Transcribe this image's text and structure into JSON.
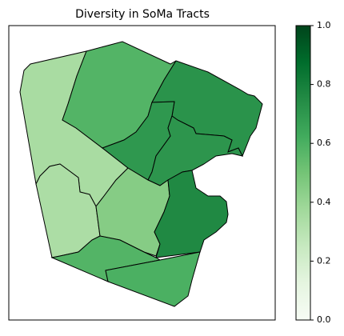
{
  "chart_data": {
    "type": "choropleth",
    "title": "Diversity in SoMa Tracts",
    "values": [
      0.35,
      0.58,
      0.72,
      0.7,
      0.71,
      0.34,
      0.45,
      0.76,
      0.58,
      0.6
    ],
    "colormap": "Greens",
    "clim": [
      0,
      1
    ],
    "cticks": [
      {
        "value": 0,
        "label": "0.0"
      },
      0.2,
      0.4,
      0.6,
      0.8,
      {
        "value": 1,
        "label": "1.0"
      }
    ]
  }
}
